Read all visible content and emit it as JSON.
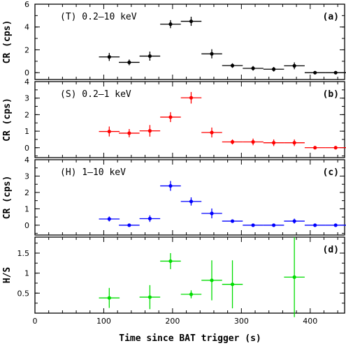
{
  "chart_data": [
    {
      "panel": "(a)",
      "label": "(T) 0.2–10 keV",
      "type": "scatter",
      "color": "#000000",
      "ylabel": "CR (cps)",
      "ylim": [
        -0.6,
        6
      ],
      "yticks": [
        0,
        2,
        4,
        6
      ],
      "points": [
        {
          "x": 108,
          "xerr": 15,
          "y": 1.38,
          "yerr": 0.35
        },
        {
          "x": 137,
          "xerr": 15,
          "y": 0.9,
          "yerr": 0.25
        },
        {
          "x": 167,
          "xerr": 15,
          "y": 1.45,
          "yerr": 0.4
        },
        {
          "x": 197,
          "xerr": 15,
          "y": 4.25,
          "yerr": 0.35
        },
        {
          "x": 227,
          "xerr": 15,
          "y": 4.5,
          "yerr": 0.4
        },
        {
          "x": 257,
          "xerr": 15,
          "y": 1.65,
          "yerr": 0.4
        },
        {
          "x": 287,
          "xerr": 15,
          "y": 0.62,
          "yerr": 0.2
        },
        {
          "x": 317,
          "xerr": 15,
          "y": 0.38,
          "yerr": 0.2
        },
        {
          "x": 347,
          "xerr": 15,
          "y": 0.3,
          "yerr": 0.2
        },
        {
          "x": 377,
          "xerr": 15,
          "y": 0.6,
          "yerr": 0.3
        },
        {
          "x": 407,
          "xerr": 15,
          "y": 0.0,
          "yerr": 0.05
        },
        {
          "x": 437,
          "xerr": 15,
          "y": 0.0,
          "yerr": 0.05
        }
      ]
    },
    {
      "panel": "(b)",
      "label": "(S) 0.2–1 keV",
      "type": "scatter",
      "color": "#ff0000",
      "ylabel": "CR (cps)",
      "ylim": [
        -0.6,
        4
      ],
      "yticks": [
        0,
        1,
        2,
        3,
        4
      ],
      "points": [
        {
          "x": 108,
          "xerr": 15,
          "y": 0.98,
          "yerr": 0.3
        },
        {
          "x": 137,
          "xerr": 15,
          "y": 0.88,
          "yerr": 0.25
        },
        {
          "x": 167,
          "xerr": 15,
          "y": 1.02,
          "yerr": 0.35
        },
        {
          "x": 197,
          "xerr": 15,
          "y": 1.85,
          "yerr": 0.3
        },
        {
          "x": 227,
          "xerr": 15,
          "y": 3.02,
          "yerr": 0.35
        },
        {
          "x": 257,
          "xerr": 15,
          "y": 0.92,
          "yerr": 0.3
        },
        {
          "x": 287,
          "xerr": 15,
          "y": 0.35,
          "yerr": 0.15
        },
        {
          "x": 317,
          "xerr": 15,
          "y": 0.35,
          "yerr": 0.2
        },
        {
          "x": 347,
          "xerr": 15,
          "y": 0.3,
          "yerr": 0.2
        },
        {
          "x": 377,
          "xerr": 15,
          "y": 0.3,
          "yerr": 0.2
        },
        {
          "x": 407,
          "xerr": 15,
          "y": 0.0,
          "yerr": 0.05
        },
        {
          "x": 437,
          "xerr": 15,
          "y": 0.0,
          "yerr": 0.05
        }
      ]
    },
    {
      "panel": "(c)",
      "label": "(H) 1–10 keV",
      "type": "scatter",
      "color": "#0000ff",
      "ylabel": "CR (cps)",
      "ylim": [
        -0.6,
        4
      ],
      "yticks": [
        0,
        1,
        2,
        3,
        4
      ],
      "points": [
        {
          "x": 108,
          "xerr": 15,
          "y": 0.38,
          "yerr": 0.15
        },
        {
          "x": 137,
          "xerr": 15,
          "y": 0.0,
          "yerr": 0.05
        },
        {
          "x": 167,
          "xerr": 15,
          "y": 0.4,
          "yerr": 0.2
        },
        {
          "x": 197,
          "xerr": 15,
          "y": 2.4,
          "yerr": 0.3
        },
        {
          "x": 227,
          "xerr": 15,
          "y": 1.45,
          "yerr": 0.25
        },
        {
          "x": 257,
          "xerr": 15,
          "y": 0.72,
          "yerr": 0.3
        },
        {
          "x": 287,
          "xerr": 15,
          "y": 0.25,
          "yerr": 0.1
        },
        {
          "x": 317,
          "xerr": 15,
          "y": 0.0,
          "yerr": 0.05
        },
        {
          "x": 347,
          "xerr": 15,
          "y": 0.0,
          "yerr": 0.05
        },
        {
          "x": 377,
          "xerr": 15,
          "y": 0.25,
          "yerr": 0.15
        },
        {
          "x": 407,
          "xerr": 15,
          "y": 0.0,
          "yerr": 0.05
        },
        {
          "x": 437,
          "xerr": 15,
          "y": 0.0,
          "yerr": 0.05
        }
      ]
    },
    {
      "panel": "(d)",
      "label": "",
      "type": "scatter",
      "color": "#00dd00",
      "ylabel": "H/S",
      "ylim": [
        0,
        1.9
      ],
      "yticks": [
        0.5,
        1,
        1.5
      ],
      "points": [
        {
          "x": 108,
          "xerr": 15,
          "y": 0.38,
          "yerr": 0.25
        },
        {
          "x": 167,
          "xerr": 15,
          "y": 0.4,
          "yerr": 0.3
        },
        {
          "x": 197,
          "xerr": 15,
          "y": 1.3,
          "yerr": 0.2
        },
        {
          "x": 227,
          "xerr": 15,
          "y": 0.47,
          "yerr": 0.1
        },
        {
          "x": 257,
          "xerr": 15,
          "y": 0.82,
          "yerr": 0.5
        },
        {
          "x": 287,
          "xerr": 15,
          "y": 0.72,
          "yerr": 0.6
        },
        {
          "x": 377,
          "xerr": 15,
          "y": 0.9,
          "yerr": 1.0
        }
      ]
    }
  ],
  "xaxis": {
    "label": "Time since BAT trigger (s)",
    "xlim": [
      0,
      450
    ],
    "ticks": [
      0,
      100,
      200,
      300,
      400
    ]
  }
}
